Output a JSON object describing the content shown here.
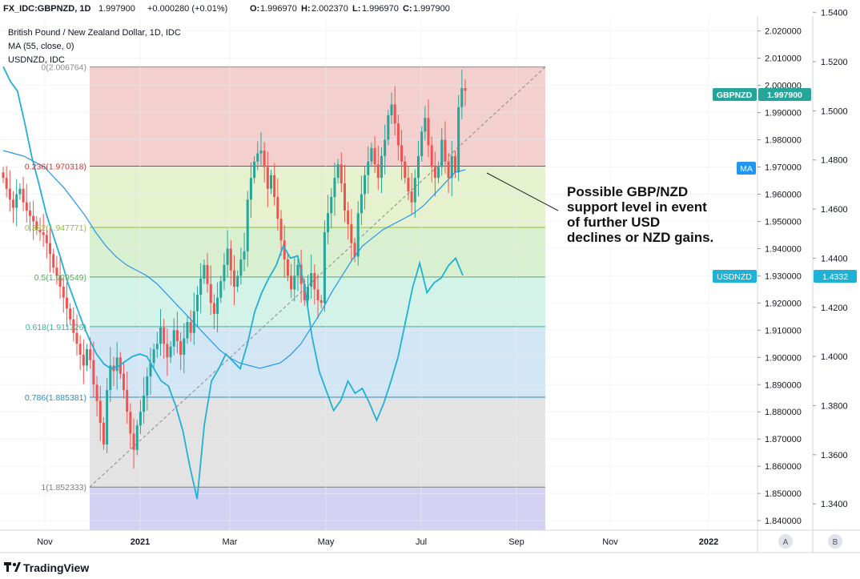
{
  "header": {
    "symbol": "FX_IDC:GBPNZD, 1D",
    "last": "1.997900",
    "change": "+0.000280 (+0.01%)",
    "open_label": "O:",
    "open": "1.996970",
    "high_label": "H:",
    "high": "2.002370",
    "low_label": "L:",
    "low": "1.996970",
    "close_label": "C:",
    "close": "1.997900",
    "accent_color": "#26a69a"
  },
  "legend": {
    "main_series": "British Pound / New Zealand Dollar, 1D, IDC",
    "ma": "MA (55, close, 0)",
    "overlay": "USDNZD, IDC"
  },
  "badges": {
    "gbpnzd_name": "GBPNZD",
    "gbpnzd_value": "1.997900",
    "ma": "MA",
    "usdnzd_name": "USDNZD",
    "usdnzd_value": "1.4332"
  },
  "annotation": {
    "line1": "Possible GBP/NZD",
    "line2": "support level in event",
    "line3": "of further USD",
    "line4": "declines or NZD gains."
  },
  "footer": {
    "brand": "TradingView",
    "axis_btn_a": "A",
    "axis_btn_b": "B"
  },
  "chart_data": {
    "type": "line",
    "title": "British Pound / New Zealand Dollar, 1D, IDC",
    "x_labels": [
      "Nov",
      "2021",
      "Mar",
      "May",
      "Jul",
      "Sep",
      "Nov",
      "2022"
    ],
    "y_ticks_left": [
      "2.020000",
      "2.010000",
      "2.000000",
      "1.990000",
      "1.980000",
      "1.970000",
      "1.960000",
      "1.950000",
      "1.940000",
      "1.930000",
      "1.920000",
      "1.910000",
      "1.900000",
      "1.890000",
      "1.880000",
      "1.870000",
      "1.860000",
      "1.850000",
      "1.840000"
    ],
    "y_ticks_right": [
      "1.5400",
      "1.5200",
      "1.5000",
      "1.4800",
      "1.4600",
      "1.4400",
      "1.4200",
      "1.4000",
      "1.3800",
      "1.3600",
      "1.3400"
    ],
    "ylim_gbpnzd": [
      1.8365,
      2.0255
    ],
    "ylim_usdnzd": [
      1.3293,
      1.5386
    ],
    "fibonacci": {
      "levels": [
        {
          "label": "0(2.006764)",
          "value": 2.006764
        },
        {
          "label": "0.236(1.970318)",
          "value": 1.970318
        },
        {
          "label": "0.382(1.947771)",
          "value": 1.947771
        },
        {
          "label": "0.5(1.929549)",
          "value": 1.929549
        },
        {
          "label": "0.618(1.911326)",
          "value": 1.911326
        },
        {
          "label": "0.786(1.885381)",
          "value": 1.885381
        },
        {
          "label": "1(1.852333)",
          "value": 1.852333
        }
      ],
      "fill_colors": [
        "#f3cfcd",
        "#e6f1cd",
        "#d8f0cf",
        "#d3f2e8",
        "#d3e6f5",
        "#e3e3e3",
        "#d4d1f3"
      ],
      "line_colors": [
        "#8c8c8c",
        "#cc3333",
        "#8fc142",
        "#4caf50",
        "#35b596",
        "#2f8cc0",
        "#808080"
      ]
    },
    "series": [
      {
        "name": "GBPNZD",
        "type": "candlestick",
        "up_color": "#26a69a",
        "down_color": "#ef5350",
        "closes": [
          1.966,
          1.962,
          1.958,
          1.955,
          1.96,
          1.962,
          1.957,
          1.954,
          1.952,
          1.95,
          1.947,
          1.946,
          1.945,
          1.942,
          1.938,
          1.933,
          1.93,
          1.926,
          1.922,
          1.918,
          1.914,
          1.909,
          1.905,
          1.901,
          1.897,
          1.903,
          1.899,
          1.89,
          1.884,
          1.876,
          1.868,
          1.888,
          1.897,
          1.895,
          1.9,
          1.894,
          1.888,
          1.88,
          1.872,
          1.866,
          1.875,
          1.88,
          1.886,
          1.893,
          1.898,
          1.903,
          1.905,
          1.911,
          1.905,
          1.9,
          1.904,
          1.91,
          1.906,
          1.901,
          1.907,
          1.913,
          1.909,
          1.917,
          1.923,
          1.929,
          1.934,
          1.927,
          1.92,
          1.916,
          1.922,
          1.928,
          1.934,
          1.94,
          1.932,
          1.926,
          1.93,
          1.936,
          1.939,
          1.958,
          1.966,
          1.972,
          1.975,
          1.976,
          1.97,
          1.962,
          1.967,
          1.959,
          1.951,
          1.943,
          1.936,
          1.93,
          1.925,
          1.93,
          1.934,
          1.927,
          1.921,
          1.926,
          1.931,
          1.925,
          1.921,
          1.92,
          1.946,
          1.953,
          1.959,
          1.966,
          1.971,
          1.964,
          1.954,
          1.949,
          1.942,
          1.937,
          1.953,
          1.96,
          1.967,
          1.972,
          1.977,
          1.971,
          1.966,
          1.974,
          1.98,
          1.989,
          1.993,
          1.986,
          1.978,
          1.972,
          1.966,
          1.961,
          1.957,
          1.966,
          1.974,
          1.983,
          1.988,
          1.978,
          1.97,
          1.966,
          1.97,
          1.98,
          1.972,
          1.966,
          1.974,
          1.968,
          1.992,
          1.999,
          1.998
        ]
      },
      {
        "name": "MA (55, close, 0)",
        "color": "#2196f3",
        "values": [
          1.976,
          1.975,
          1.974,
          1.972,
          1.97,
          1.966,
          1.962,
          1.957,
          1.952,
          1.946,
          1.941,
          1.937,
          1.934,
          1.932,
          1.93,
          1.927,
          1.923,
          1.919,
          1.915,
          1.911,
          1.907,
          1.903,
          1.9,
          1.898,
          1.897,
          1.896,
          1.897,
          1.898,
          1.901,
          1.905,
          1.911,
          1.917,
          1.924,
          1.93,
          1.936,
          1.941,
          1.944,
          1.947,
          1.949,
          1.951,
          1.953,
          1.956,
          1.96,
          1.964,
          1.968,
          1.969
        ]
      },
      {
        "name": "USDNZD",
        "color": "#1fb1d6",
        "values": [
          1.518,
          1.512,
          1.508,
          1.495,
          1.481,
          1.47,
          1.458,
          1.449,
          1.44,
          1.43,
          1.422,
          1.414,
          1.407,
          1.401,
          1.397,
          1.395,
          1.396,
          1.398,
          1.4,
          1.401,
          1.4,
          1.395,
          1.39,
          1.388,
          1.38,
          1.37,
          1.355,
          1.342,
          1.372,
          1.39,
          1.395,
          1.401,
          1.398,
          1.395,
          1.405,
          1.418,
          1.426,
          1.432,
          1.437,
          1.445,
          1.44,
          1.441,
          1.428,
          1.408,
          1.394,
          1.386,
          1.378,
          1.382,
          1.39,
          1.385,
          1.387,
          1.381,
          1.374,
          1.381,
          1.39,
          1.4,
          1.414,
          1.428,
          1.438,
          1.426,
          1.43,
          1.432,
          1.437,
          1.44,
          1.433
        ]
      }
    ],
    "trendline": {
      "from": [
        1.852333
      ],
      "to": [
        2.006764
      ],
      "style": "dashed"
    }
  }
}
